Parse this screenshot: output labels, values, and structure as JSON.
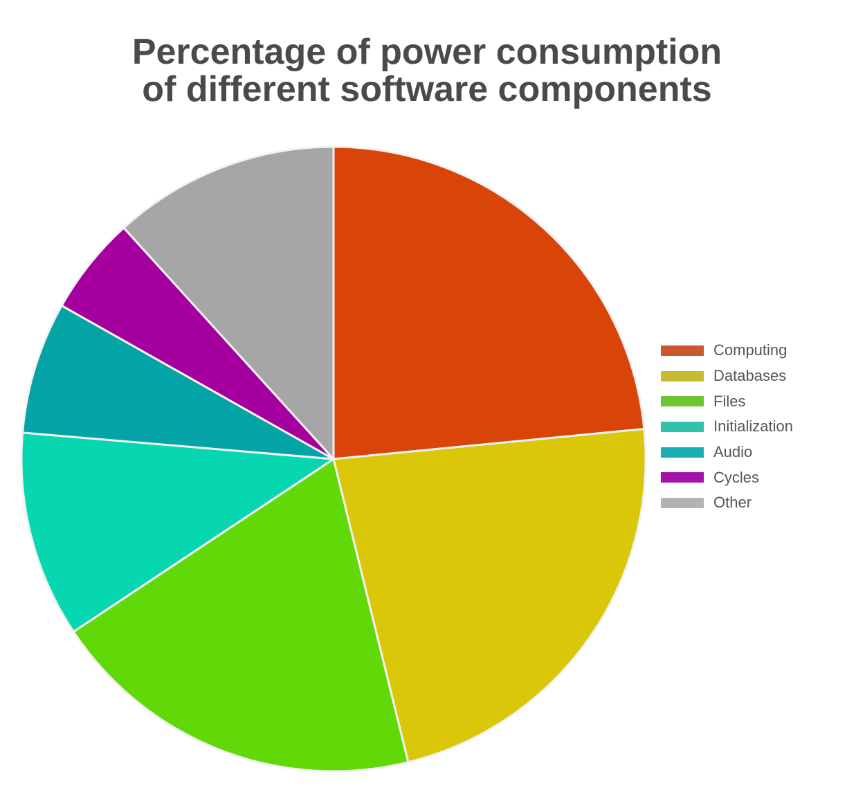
{
  "chart_data": {
    "type": "pie",
    "title": [
      "Percentage of power consumption",
      "of different software components"
    ],
    "legend_position": "right",
    "slices": [
      {
        "label": "Computing",
        "value": 24.4,
        "color": "#d94409",
        "legend_color": "#c9582e"
      },
      {
        "label": "Databases",
        "value": 23.6,
        "color": "#dbc709",
        "legend_color": "#c7bc30"
      },
      {
        "label": "Files",
        "value": 20.3,
        "color": "#61d909",
        "legend_color": "#6cc633"
      },
      {
        "label": "Initialization",
        "value": 11.1,
        "color": "#07d7b1",
        "legend_color": "#2fc4a8"
      },
      {
        "label": "Audio",
        "value": 7.1,
        "color": "#04a3a5",
        "legend_color": "#1aaeb0"
      },
      {
        "label": "Cycles",
        "value": 5.3,
        "color": "#a5009f",
        "legend_color": "#a512a7"
      },
      {
        "label": "Other",
        "value": 12.2,
        "color": "#a6a6a6",
        "legend_color": "#b3b3b3"
      }
    ]
  }
}
